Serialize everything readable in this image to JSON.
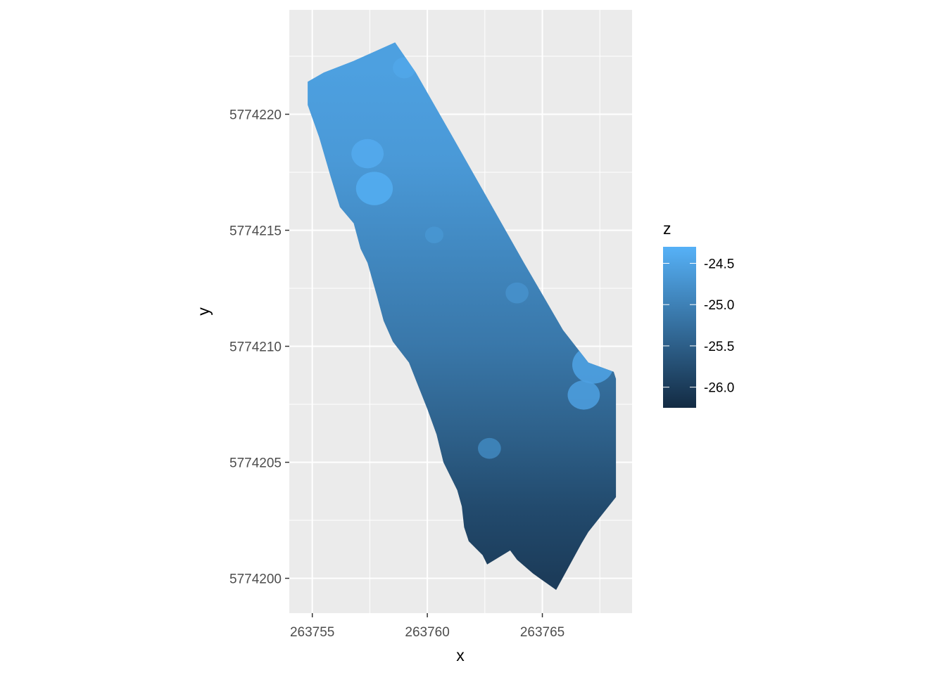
{
  "chart_data": {
    "type": "raster",
    "title": "",
    "xlabel": "x",
    "ylabel": "y",
    "xlim": [
      263754.0,
      263768.9
    ],
    "ylim": [
      5774198.5,
      5774224.5
    ],
    "x_ticks": [
      263755,
      263760,
      263765
    ],
    "y_ticks": [
      5774200,
      5774205,
      5774210,
      5774215,
      5774220
    ],
    "grid": true,
    "legend": {
      "title": "z",
      "placement": "right",
      "breaks": [
        -24.5,
        -25.0,
        -25.5,
        -26.0
      ],
      "break_labels": [
        "-24.5",
        "-25.0",
        "-25.5",
        "-26.0"
      ],
      "range": [
        -26.25,
        -24.3
      ],
      "color_low": "#132B43",
      "color_high": "#56B1F7"
    },
    "outline": [
      [
        263754.8,
        5774221.4
      ],
      [
        263755.5,
        5774221.8
      ],
      [
        263756.8,
        5774222.3
      ],
      [
        263758.6,
        5774223.1
      ],
      [
        263759.5,
        5774221.8
      ],
      [
        263761.0,
        5774219.2
      ],
      [
        263762.6,
        5774216.4
      ],
      [
        263764.2,
        5774213.6
      ],
      [
        263765.9,
        5774210.7
      ],
      [
        263767.0,
        5774209.3
      ],
      [
        263768.1,
        5774208.9
      ],
      [
        263768.2,
        5774208.6
      ],
      [
        263768.2,
        5774203.5
      ],
      [
        263767.0,
        5774202.0
      ],
      [
        263766.7,
        5774201.5
      ],
      [
        263765.6,
        5774199.5
      ],
      [
        263764.6,
        5774200.2
      ],
      [
        263763.9,
        5774200.8
      ],
      [
        263763.6,
        5774201.2
      ],
      [
        263762.6,
        5774200.6
      ],
      [
        263762.4,
        5774201.0
      ],
      [
        263761.8,
        5774201.6
      ],
      [
        263761.6,
        5774202.2
      ],
      [
        263761.5,
        5774203.1
      ],
      [
        263761.3,
        5774203.8
      ],
      [
        263760.7,
        5774205.0
      ],
      [
        263760.4,
        5774206.2
      ],
      [
        263760.0,
        5774207.3
      ],
      [
        263759.6,
        5774208.3
      ],
      [
        263759.2,
        5774209.3
      ],
      [
        263758.5,
        5774210.2
      ],
      [
        263758.1,
        5774211.1
      ],
      [
        263757.8,
        5774212.2
      ],
      [
        263757.4,
        5774213.6
      ],
      [
        263757.1,
        5774214.2
      ],
      [
        263756.8,
        5774215.3
      ],
      [
        263756.2,
        5774216.0
      ],
      [
        263755.8,
        5774217.3
      ],
      [
        263755.3,
        5774219.0
      ],
      [
        263754.8,
        5774220.4
      ],
      [
        263754.8,
        5774221.4
      ]
    ],
    "z_surface": [
      {
        "y": 5774222.0,
        "z": -24.55
      },
      {
        "y": 5774218.0,
        "z": -24.65
      },
      {
        "y": 5774214.0,
        "z": -24.9
      },
      {
        "y": 5774210.0,
        "z": -25.15
      },
      {
        "y": 5774206.0,
        "z": -25.5
      },
      {
        "y": 5774203.0,
        "z": -25.8
      },
      {
        "y": 5774200.0,
        "z": -26.0
      }
    ],
    "light_patches": [
      {
        "x": 263757.4,
        "y": 5774218.3,
        "r": 0.7,
        "z": -24.4
      },
      {
        "x": 263757.7,
        "y": 5774216.8,
        "r": 0.8,
        "z": -24.35
      },
      {
        "x": 263759.0,
        "y": 5774222.0,
        "r": 0.5,
        "z": -24.45
      },
      {
        "x": 263767.2,
        "y": 5774209.2,
        "r": 0.9,
        "z": -24.5
      },
      {
        "x": 263766.8,
        "y": 5774207.9,
        "r": 0.7,
        "z": -24.55
      },
      {
        "x": 263762.7,
        "y": 5774205.6,
        "r": 0.5,
        "z": -24.9
      },
      {
        "x": 263763.9,
        "y": 5774212.3,
        "r": 0.5,
        "z": -24.75
      },
      {
        "x": 263760.3,
        "y": 5774214.8,
        "r": 0.4,
        "z": -24.7
      }
    ]
  }
}
